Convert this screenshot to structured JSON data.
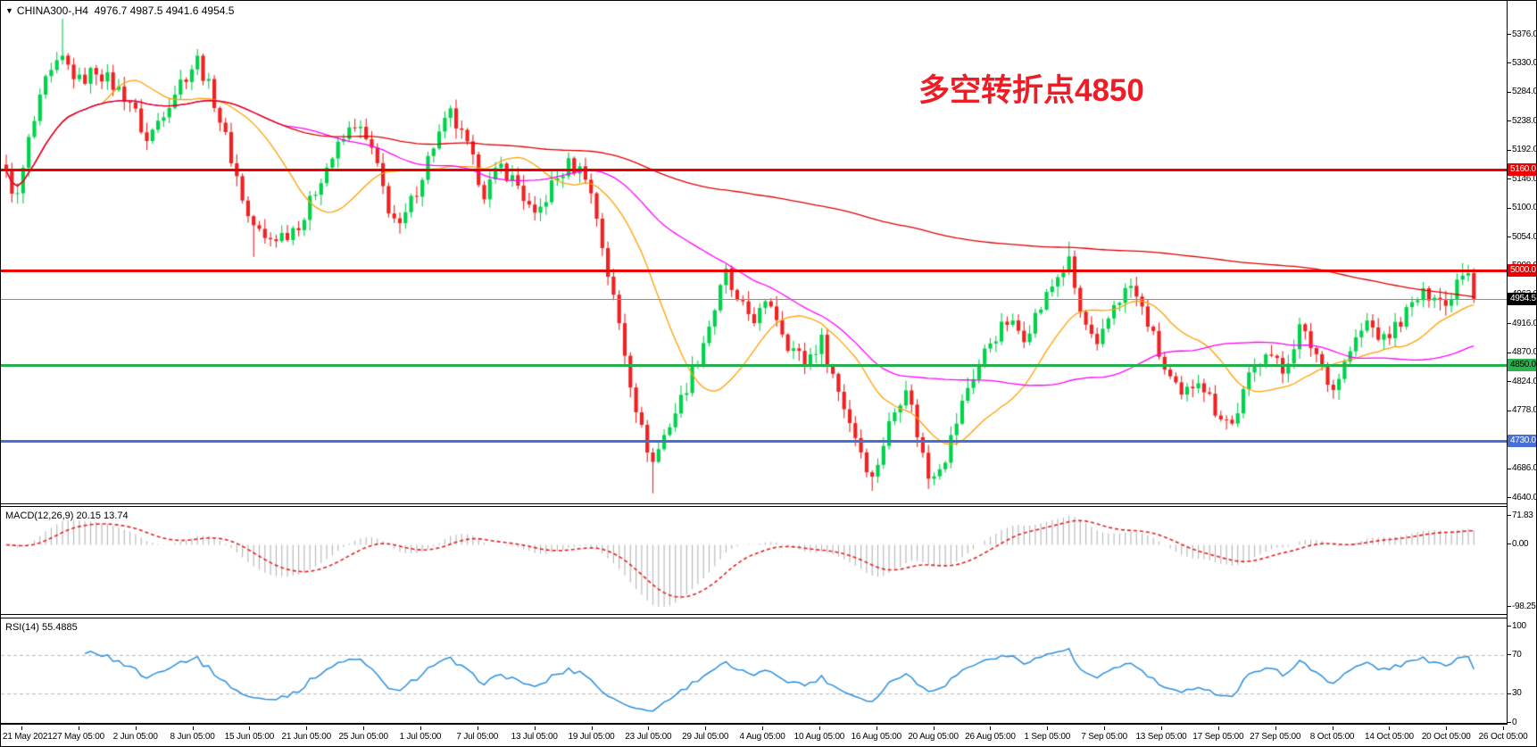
{
  "header": {
    "collapse_icon": "▼",
    "symbol_period": "CHINA300-,H4",
    "ohlc_values": "4976.7 4987.5 4941.6 4954.5"
  },
  "annotation": {
    "text": "多空转折点4850",
    "color": "#ee1c25"
  },
  "chart_data": {
    "type": "candlestick",
    "symbol": "CHINA300-",
    "timeframe": "H4",
    "last_ohlc": {
      "open": 4976.7,
      "high": 4987.5,
      "low": 4941.6,
      "close": 4954.5
    },
    "price_axis": {
      "min": 4640.0,
      "max": 5376.0,
      "step": 46.0,
      "labels": [
        "5376.0",
        "5330.0",
        "5284.0",
        "5238.0",
        "5192.0",
        "5146.0",
        "5100.0",
        "5054.0",
        "5008.0",
        "4962.0",
        "4916.0",
        "4870.0",
        "4824.0",
        "4778.0",
        "4732.0",
        "4686.0",
        "4640.0"
      ]
    },
    "hlines": [
      {
        "value": 5160.0,
        "label": "5160.0",
        "color": "#ee0000",
        "thickness": 3,
        "badge_bg": "#ee0000",
        "badge_fg": "#ffffff"
      },
      {
        "value": 5000.0,
        "label": "5000.0",
        "color": "#ee0000",
        "thickness": 3,
        "badge_bg": "#ee0000",
        "badge_fg": "#ffffff"
      },
      {
        "value": 4850.0,
        "label": "4850.0",
        "color": "#22b14c",
        "thickness": 3,
        "badge_bg": "#2ab44e",
        "badge_fg": "#000000"
      },
      {
        "value": 4730.0,
        "label": "4730.0",
        "color": "#4a6fd4",
        "thickness": 3,
        "badge_bg": "#4a6fd4",
        "badge_fg": "#ffffff"
      }
    ],
    "current_price": {
      "value": 4954.5,
      "label": "4954.5",
      "line_color": "#8a9097",
      "badge_bg": "#000000",
      "badge_fg": "#ffffff"
    },
    "candles": {
      "count": 262,
      "up_color": "#00d24b",
      "down_color": "#ee2222",
      "noise": 26,
      "wick": 15,
      "anchors": [
        [
          0,
          5150
        ],
        [
          2,
          5115
        ],
        [
          4,
          5205
        ],
        [
          7,
          5298
        ],
        [
          10,
          5335
        ],
        [
          13,
          5300
        ],
        [
          16,
          5320
        ],
        [
          19,
          5295
        ],
        [
          22,
          5270
        ],
        [
          25,
          5205
        ],
        [
          28,
          5255
        ],
        [
          31,
          5300
        ],
        [
          34,
          5335
        ],
        [
          37,
          5270
        ],
        [
          40,
          5180
        ],
        [
          43,
          5085
        ],
        [
          46,
          5048
        ],
        [
          50,
          5060
        ],
        [
          53,
          5085
        ],
        [
          56,
          5150
        ],
        [
          59,
          5195
        ],
        [
          62,
          5235
        ],
        [
          65,
          5190
        ],
        [
          68,
          5100
        ],
        [
          70,
          5065
        ],
        [
          73,
          5130
        ],
        [
          76,
          5200
        ],
        [
          79,
          5248
        ],
        [
          82,
          5195
        ],
        [
          85,
          5125
        ],
        [
          88,
          5165
        ],
        [
          91,
          5135
        ],
        [
          94,
          5080
        ],
        [
          97,
          5135
        ],
        [
          100,
          5168
        ],
        [
          103,
          5155
        ],
        [
          105,
          5085
        ],
        [
          107,
          4995
        ],
        [
          109,
          4915
        ],
        [
          111,
          4825
        ],
        [
          113,
          4745
        ],
        [
          115,
          4695
        ],
        [
          117,
          4738
        ],
        [
          120,
          4795
        ],
        [
          123,
          4862
        ],
        [
          126,
          4940
        ],
        [
          128,
          4995
        ],
        [
          130,
          4945
        ],
        [
          133,
          4925
        ],
        [
          136,
          4948
        ],
        [
          139,
          4885
        ],
        [
          142,
          4855
        ],
        [
          145,
          4888
        ],
        [
          148,
          4808
        ],
        [
          151,
          4738
        ],
        [
          154,
          4668
        ],
        [
          157,
          4755
        ],
        [
          160,
          4820
        ],
        [
          162,
          4742
        ],
        [
          164,
          4672
        ],
        [
          167,
          4705
        ],
        [
          171,
          4815
        ],
        [
          175,
          4888
        ],
        [
          178,
          4918
        ],
        [
          181,
          4898
        ],
        [
          184,
          4942
        ],
        [
          187,
          4992
        ],
        [
          189,
          5012
        ],
        [
          191,
          4932
        ],
        [
          194,
          4872
        ],
        [
          197,
          4948
        ],
        [
          200,
          4975
        ],
        [
          203,
          4918
        ],
        [
          206,
          4842
        ],
        [
          209,
          4795
        ],
        [
          212,
          4832
        ],
        [
          215,
          4780
        ],
        [
          218,
          4755
        ],
        [
          221,
          4828
        ],
        [
          224,
          4878
        ],
        [
          227,
          4838
        ],
        [
          230,
          4908
        ],
        [
          233,
          4868
        ],
        [
          236,
          4812
        ],
        [
          239,
          4872
        ],
        [
          242,
          4918
        ],
        [
          245,
          4888
        ],
        [
          248,
          4922
        ],
        [
          251,
          4955
        ],
        [
          254,
          4968
        ],
        [
          256,
          4942
        ],
        [
          258,
          4988
        ],
        [
          260,
          4996
        ],
        [
          261,
          4954.5
        ]
      ],
      "spikes_high": {
        "10": 5400,
        "34": 5352,
        "128": 5010,
        "189": 5046,
        "259": 5012
      },
      "spikes_low": {
        "44": 5022,
        "115": 4646,
        "154": 4650,
        "164": 4653
      }
    },
    "moving_averages": [
      {
        "period": 18,
        "color": "#ffa000"
      },
      {
        "period": 50,
        "color": "#ff00ff"
      },
      {
        "period": 230,
        "color": "#e00000"
      }
    ],
    "indicators": {
      "macd": {
        "label": "MACD(12,26,9) 20.15 13.74",
        "fast": 12,
        "slow": 26,
        "signal": 9,
        "axis_labels": [
          "71.83",
          "0.00",
          "-98.25"
        ],
        "histogram_color": "#b5b5b5",
        "signal_color": "#e62020"
      },
      "rsi": {
        "label": "RSI(14) 55.4885",
        "period": 14,
        "levels": [
          70,
          30
        ],
        "axis_labels": [
          "100",
          "70",
          "30",
          "0"
        ],
        "line_color": "#2b8fdd",
        "level_color": "#b8b8b8"
      }
    },
    "time_labels": [
      "21 May 2021",
      "27 May 05:00",
      "2 Jun 05:00",
      "8 Jun 05:00",
      "15 Jun 05:00",
      "21 Jun 05:00",
      "25 Jun 05:00",
      "1 Jul 05:00",
      "7 Jul 05:00",
      "13 Jul 05:00",
      "19 Jul 05:00",
      "23 Jul 05:00",
      "29 Jul 05:00",
      "4 Aug 05:00",
      "10 Aug 05:00",
      "16 Aug 05:00",
      "20 Aug 05:00",
      "26 Aug 05:00",
      "1 Sep 05:00",
      "7 Sep 05:00",
      "13 Sep 05:00",
      "17 Sep 05:00",
      "27 Sep 05:00",
      "8 Oct 05:00",
      "14 Oct 05:00",
      "20 Oct 05:00",
      "26 Oct 05:00"
    ]
  }
}
